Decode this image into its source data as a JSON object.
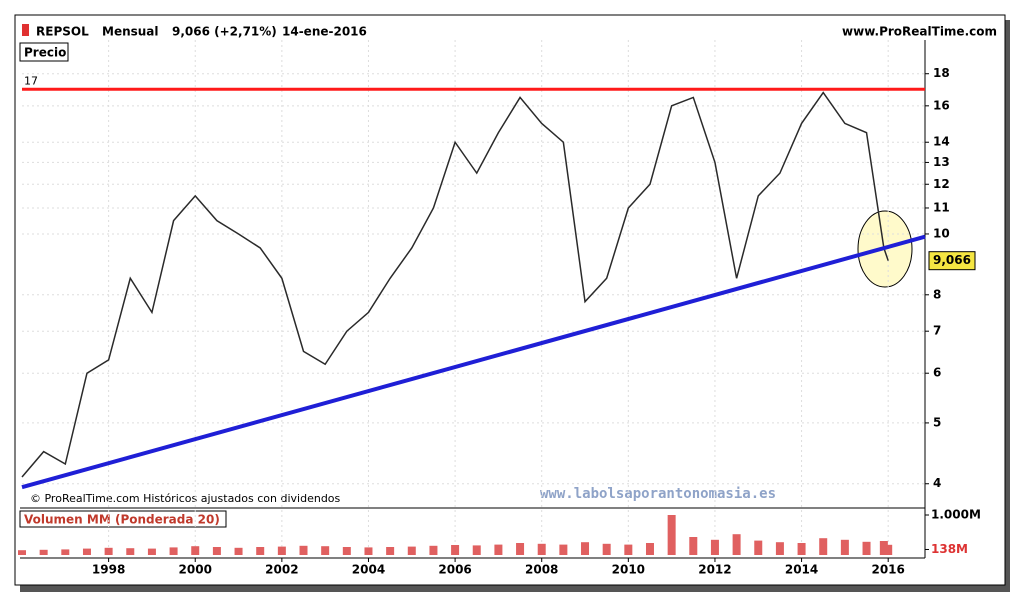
{
  "chart_data": {
    "type": "line",
    "title": "REPSOL",
    "period": "Mensual",
    "last_text": "9,066 (+2,71%)",
    "date": "14-ene-2016",
    "source": "www.ProRealTime.com",
    "panel_label": "Precio",
    "footnote": "© ProRealTime.com  Históricos ajustados con dividendos",
    "watermark": "www.labolsaporantonomasia.es",
    "color": "#2a2a2a",
    "log_scale": true,
    "x": [
      1996.0,
      1996.5,
      1997.0,
      1997.5,
      1998.0,
      1998.5,
      1999.0,
      1999.5,
      2000.0,
      2000.5,
      2001.0,
      2001.5,
      2002.0,
      2002.5,
      2003.0,
      2003.5,
      2004.0,
      2004.5,
      2005.0,
      2005.5,
      2006.0,
      2006.5,
      2007.0,
      2007.5,
      2008.0,
      2008.5,
      2009.0,
      2009.5,
      2010.0,
      2010.5,
      2011.0,
      2011.5,
      2012.0,
      2012.5,
      2013.0,
      2013.5,
      2014.0,
      2014.5,
      2015.0,
      2015.5,
      2015.9,
      2016.0
    ],
    "values": [
      4.1,
      4.5,
      4.3,
      6.0,
      6.3,
      8.5,
      7.5,
      10.5,
      11.5,
      10.5,
      10.0,
      9.5,
      8.5,
      6.5,
      6.2,
      7.0,
      7.5,
      8.5,
      9.5,
      11.0,
      14.0,
      12.5,
      14.5,
      16.5,
      15.0,
      14.0,
      7.8,
      8.5,
      11.0,
      12.0,
      16.0,
      16.5,
      13.0,
      8.5,
      11.5,
      12.5,
      15.0,
      16.8,
      15.0,
      14.5,
      9.5,
      9.066
    ],
    "xlim": [
      1996,
      2016.85
    ],
    "xticks": [
      1998,
      2000,
      2002,
      2004,
      2006,
      2008,
      2010,
      2012,
      2014,
      2016
    ],
    "ylim": [
      3.7,
      20
    ],
    "yticks": [
      4,
      5,
      6,
      7,
      8,
      10,
      11,
      12,
      13,
      14,
      16,
      18
    ],
    "grid": true,
    "resistance": {
      "value": 17,
      "label": "17",
      "color": "#ff1a1a"
    },
    "support": {
      "x": [
        1996,
        2016.85
      ],
      "values": [
        3.95,
        9.9
      ],
      "color": "#1f1fd6"
    },
    "last_price": {
      "value": 9.066,
      "label": "9,066"
    },
    "volume": {
      "type": "bar",
      "title": "Volumen MM (Ponderada 20)",
      "color": "#e06060",
      "values": [
        120,
        130,
        140,
        160,
        180,
        170,
        160,
        190,
        220,
        200,
        180,
        200,
        210,
        230,
        220,
        200,
        190,
        200,
        210,
        230,
        250,
        240,
        260,
        300,
        280,
        260,
        320,
        280,
        260,
        300,
        1000,
        450,
        380,
        520,
        360,
        320,
        300,
        420,
        380,
        330,
        350,
        255
      ],
      "ylim": [
        0,
        1000
      ],
      "yticks": [
        {
          "value": 1000,
          "label": "1.000M"
        },
        {
          "value": 138,
          "label": "138M"
        }
      ]
    }
  }
}
